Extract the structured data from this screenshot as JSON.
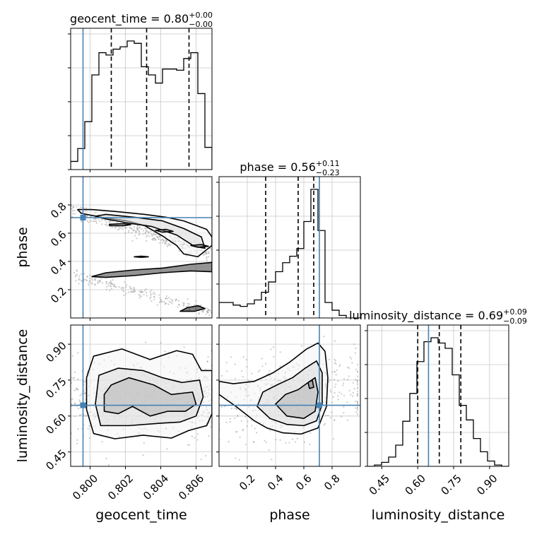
{
  "chart_data": {
    "type": "corner",
    "parameters": [
      "geocent_time",
      "phase",
      "luminosity_distance"
    ],
    "truths": {
      "geocent_time": 0.7996,
      "phase": 0.71,
      "luminosity_distance": 0.645
    },
    "titles": [
      {
        "param": "geocent_time",
        "prefix": "geocent_time = 0.80",
        "plus": "+0.00",
        "minus": "−0.00"
      },
      {
        "param": "phase",
        "prefix": "phase = 0.56",
        "plus": "+0.11",
        "minus": "−0.23"
      },
      {
        "param": "luminosity_distance",
        "prefix": "luminosity_distance = 0.69",
        "plus": "+0.09",
        "minus": "−0.09"
      }
    ],
    "axes": {
      "geocent_time": {
        "range": [
          0.7989,
          0.8069
        ],
        "ticks": [
          0.8,
          0.802,
          0.804,
          0.806
        ],
        "tick_labels": [
          "0.800",
          "0.802",
          "0.804",
          "0.806"
        ],
        "label": "geocent_time"
      },
      "phase": {
        "range": [
          0.0,
          1.0
        ],
        "ticks_x": [
          0.2,
          0.4,
          0.6,
          0.8
        ],
        "tick_labels_x": [
          "0.2",
          "0.4",
          "0.6",
          "0.8"
        ],
        "ticks_y": [
          0.2,
          0.4,
          0.6,
          0.8
        ],
        "tick_labels_y": [
          "0.2",
          "0.4",
          "0.6",
          "0.8"
        ],
        "label": "phase"
      },
      "luminosity_distance": {
        "range": [
          0.39,
          0.98
        ],
        "ticks": [
          0.45,
          0.6,
          0.75,
          0.9
        ],
        "tick_labels": [
          "0.45",
          "0.60",
          "0.75",
          "0.90"
        ],
        "label": "luminosity_distance"
      }
    },
    "marginals": {
      "geocent_time": {
        "edges": [
          0.7989,
          0.7993,
          0.7997,
          0.8001,
          0.8005,
          0.8009,
          0.8013,
          0.8017,
          0.8021,
          0.8025,
          0.8029,
          0.8033,
          0.8037,
          0.8041,
          0.8045,
          0.8049,
          0.8053,
          0.8057,
          0.8061,
          0.8065,
          0.8069
        ],
        "counts": [
          0.07,
          0.18,
          0.41,
          0.81,
          1.0,
          0.98,
          1.03,
          1.05,
          1.1,
          1.08,
          0.88,
          0.81,
          0.74,
          0.86,
          0.86,
          0.85,
          0.95,
          1.0,
          0.65,
          0.19
        ],
        "quantiles": [
          0.8012,
          0.8032,
          0.8056
        ]
      },
      "phase": {
        "edges": [
          0.0,
          0.05,
          0.1,
          0.15,
          0.2,
          0.25,
          0.3,
          0.35,
          0.4,
          0.45,
          0.5,
          0.55,
          0.6,
          0.65,
          0.7,
          0.75,
          0.8,
          0.85,
          0.9,
          0.95,
          1.0
        ],
        "counts": [
          0.12,
          0.12,
          0.1,
          0.09,
          0.11,
          0.14,
          0.2,
          0.28,
          0.36,
          0.43,
          0.48,
          0.54,
          0.75,
          1.0,
          0.68,
          0.12,
          0.06,
          0.02,
          0.0,
          0.0
        ],
        "quantiles": [
          0.33,
          0.56,
          0.67
        ]
      },
      "luminosity_distance": {
        "edges": [
          0.39,
          0.4195,
          0.449,
          0.4785,
          0.508,
          0.5375,
          0.567,
          0.5965,
          0.626,
          0.6555,
          0.685,
          0.7145,
          0.744,
          0.7735,
          0.803,
          0.8325,
          0.862,
          0.8915,
          0.921,
          0.9505,
          0.98
        ],
        "counts": [
          0.0,
          0.01,
          0.03,
          0.07,
          0.16,
          0.34,
          0.55,
          0.79,
          0.94,
          0.97,
          0.93,
          0.89,
          0.69,
          0.46,
          0.35,
          0.21,
          0.11,
          0.04,
          0.01,
          0.0
        ],
        "quantiles": [
          0.6,
          0.69,
          0.78
        ]
      }
    },
    "contours_phase_vs_time": [
      [
        [
          0.7993,
          0.767
        ],
        [
          0.8001,
          0.767
        ],
        [
          0.8015,
          0.753
        ],
        [
          0.8031,
          0.733
        ],
        [
          0.8043,
          0.713
        ],
        [
          0.8053,
          0.687
        ],
        [
          0.8066,
          0.627
        ],
        [
          0.8069,
          0.573
        ],
        [
          0.8069,
          0.513
        ],
        [
          0.8061,
          0.433
        ],
        [
          0.8053,
          0.453
        ],
        [
          0.8049,
          0.513
        ],
        [
          0.8041,
          0.58
        ],
        [
          0.8031,
          0.653
        ],
        [
          0.8021,
          0.687
        ],
        [
          0.8009,
          0.707
        ],
        [
          0.7995,
          0.74
        ],
        [
          0.7993,
          0.767
        ]
      ],
      [
        [
          0.8009,
          0.733
        ],
        [
          0.8025,
          0.713
        ],
        [
          0.8041,
          0.687
        ],
        [
          0.8053,
          0.633
        ],
        [
          0.8063,
          0.573
        ],
        [
          0.8065,
          0.493
        ],
        [
          0.8059,
          0.507
        ],
        [
          0.8049,
          0.587
        ],
        [
          0.8035,
          0.647
        ],
        [
          0.8021,
          0.673
        ],
        [
          0.8009,
          0.7
        ],
        [
          0.8003,
          0.72
        ],
        [
          0.8009,
          0.733
        ]
      ],
      [
        [
          0.8011,
          0.663
        ],
        [
          0.8019,
          0.667
        ],
        [
          0.8023,
          0.66
        ],
        [
          0.8019,
          0.653
        ],
        [
          0.8011,
          0.653
        ],
        [
          0.8011,
          0.663
        ]
      ],
      [
        [
          0.8037,
          0.62
        ],
        [
          0.8043,
          0.627
        ],
        [
          0.8047,
          0.613
        ],
        [
          0.8041,
          0.607
        ],
        [
          0.8037,
          0.62
        ]
      ],
      [
        [
          0.8057,
          0.513
        ],
        [
          0.8063,
          0.52
        ],
        [
          0.8067,
          0.507
        ],
        [
          0.8061,
          0.5
        ],
        [
          0.8057,
          0.513
        ]
      ],
      [
        [
          0.8001,
          0.293
        ],
        [
          0.8009,
          0.32
        ],
        [
          0.8025,
          0.34
        ],
        [
          0.8041,
          0.353
        ],
        [
          0.8057,
          0.38
        ],
        [
          0.8069,
          0.393
        ],
        [
          0.8069,
          0.327
        ],
        [
          0.8057,
          0.333
        ],
        [
          0.8041,
          0.32
        ],
        [
          0.8025,
          0.3
        ],
        [
          0.8009,
          0.287
        ],
        [
          0.8001,
          0.293
        ]
      ],
      [
        [
          0.8051,
          0.047
        ],
        [
          0.8055,
          0.073
        ],
        [
          0.8061,
          0.087
        ],
        [
          0.8065,
          0.067
        ],
        [
          0.8059,
          0.047
        ],
        [
          0.8051,
          0.047
        ]
      ],
      [
        [
          0.8025,
          0.433
        ],
        [
          0.8029,
          0.437
        ],
        [
          0.8033,
          0.433
        ],
        [
          0.8029,
          0.429
        ],
        [
          0.8025,
          0.433
        ]
      ]
    ],
    "contours_dist_vs_time": [
      [
        [
          0.7998,
          0.627
        ],
        [
          0.8002,
          0.527
        ],
        [
          0.8014,
          0.505
        ],
        [
          0.803,
          0.52
        ],
        [
          0.8046,
          0.508
        ],
        [
          0.8056,
          0.54
        ],
        [
          0.8066,
          0.56
        ],
        [
          0.8069,
          0.61
        ],
        [
          0.8069,
          0.79
        ],
        [
          0.8063,
          0.79
        ],
        [
          0.8058,
          0.858
        ],
        [
          0.8049,
          0.873
        ],
        [
          0.8034,
          0.836
        ],
        [
          0.8018,
          0.88
        ],
        [
          0.8002,
          0.85
        ],
        [
          0.7998,
          0.76
        ],
        [
          0.7998,
          0.627
        ]
      ],
      [
        [
          0.8003,
          0.65
        ],
        [
          0.8006,
          0.56
        ],
        [
          0.8022,
          0.56
        ],
        [
          0.804,
          0.57
        ],
        [
          0.8051,
          0.575
        ],
        [
          0.806,
          0.6
        ],
        [
          0.8064,
          0.68
        ],
        [
          0.8062,
          0.75
        ],
        [
          0.8052,
          0.74
        ],
        [
          0.8041,
          0.76
        ],
        [
          0.803,
          0.79
        ],
        [
          0.8016,
          0.8
        ],
        [
          0.8005,
          0.77
        ],
        [
          0.8003,
          0.65
        ]
      ],
      [
        [
          0.8008,
          0.62
        ],
        [
          0.8016,
          0.61
        ],
        [
          0.8024,
          0.64
        ],
        [
          0.8034,
          0.6
        ],
        [
          0.8044,
          0.62
        ],
        [
          0.8054,
          0.62
        ],
        [
          0.806,
          0.65
        ],
        [
          0.8058,
          0.7
        ],
        [
          0.8046,
          0.69
        ],
        [
          0.8036,
          0.73
        ],
        [
          0.8022,
          0.76
        ],
        [
          0.8012,
          0.73
        ],
        [
          0.8008,
          0.69
        ],
        [
          0.8008,
          0.62
        ]
      ]
    ],
    "contours_dist_vs_phase": [
      [
        [
          0.0,
          0.69
        ],
        [
          0.12,
          0.64
        ],
        [
          0.25,
          0.58
        ],
        [
          0.34,
          0.55
        ],
        [
          0.45,
          0.53
        ],
        [
          0.58,
          0.525
        ],
        [
          0.7,
          0.55
        ],
        [
          0.76,
          0.64
        ],
        [
          0.77,
          0.76
        ],
        [
          0.75,
          0.87
        ],
        [
          0.7,
          0.905
        ],
        [
          0.62,
          0.88
        ],
        [
          0.5,
          0.825
        ],
        [
          0.38,
          0.78
        ],
        [
          0.25,
          0.745
        ],
        [
          0.1,
          0.735
        ],
        [
          0.0,
          0.745
        ],
        [
          0.0,
          0.69
        ]
      ],
      [
        [
          0.27,
          0.64
        ],
        [
          0.36,
          0.59
        ],
        [
          0.48,
          0.565
        ],
        [
          0.6,
          0.56
        ],
        [
          0.69,
          0.58
        ],
        [
          0.73,
          0.65
        ],
        [
          0.73,
          0.78
        ],
        [
          0.69,
          0.83
        ],
        [
          0.61,
          0.8
        ],
        [
          0.52,
          0.76
        ],
        [
          0.41,
          0.73
        ],
        [
          0.31,
          0.7
        ],
        [
          0.27,
          0.64
        ]
      ],
      [
        [
          0.4,
          0.65
        ],
        [
          0.48,
          0.6
        ],
        [
          0.6,
          0.59
        ],
        [
          0.68,
          0.62
        ],
        [
          0.7,
          0.7
        ],
        [
          0.68,
          0.76
        ],
        [
          0.63,
          0.74
        ],
        [
          0.56,
          0.71
        ],
        [
          0.47,
          0.69
        ],
        [
          0.4,
          0.65
        ]
      ],
      [
        [
          0.63,
          0.74
        ],
        [
          0.66,
          0.75
        ],
        [
          0.67,
          0.72
        ],
        [
          0.64,
          0.715
        ],
        [
          0.63,
          0.74
        ]
      ]
    ]
  }
}
